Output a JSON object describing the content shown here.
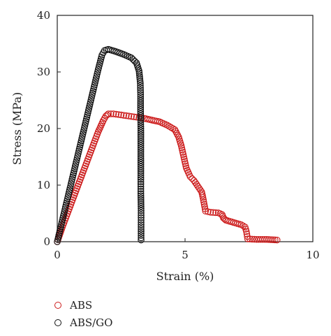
{
  "chart_data": {
    "type": "scatter",
    "title": "",
    "xlabel": "Strain (%)",
    "ylabel": "Stress (MPa)",
    "xlim": [
      0,
      10
    ],
    "ylim": [
      0,
      40
    ],
    "xticks": [
      "0",
      "5",
      "10"
    ],
    "yticks": [
      "0",
      "10",
      "20",
      "30",
      "40"
    ],
    "grid": false,
    "legend_position": "bottom-left",
    "series": [
      {
        "name": "ABS",
        "color": "#cc1a1a",
        "marker": "open-circle",
        "points": [
          [
            0.0,
            0.0
          ],
          [
            0.2,
            2.6
          ],
          [
            0.4,
            5.0
          ],
          [
            0.6,
            7.4
          ],
          [
            0.8,
            9.8
          ],
          [
            1.0,
            12.2
          ],
          [
            1.2,
            14.6
          ],
          [
            1.4,
            17.0
          ],
          [
            1.6,
            19.4
          ],
          [
            1.8,
            21.4
          ],
          [
            1.9,
            22.2
          ],
          [
            2.0,
            22.6
          ],
          [
            2.2,
            22.6
          ],
          [
            2.5,
            22.4
          ],
          [
            2.8,
            22.2
          ],
          [
            3.1,
            22.0
          ],
          [
            3.4,
            21.8
          ],
          [
            3.7,
            21.5
          ],
          [
            4.0,
            21.2
          ],
          [
            4.3,
            20.6
          ],
          [
            4.6,
            19.8
          ],
          [
            4.75,
            18.5
          ],
          [
            4.85,
            17.0
          ],
          [
            4.95,
            15.0
          ],
          [
            5.05,
            13.0
          ],
          [
            5.2,
            11.5
          ],
          [
            5.35,
            10.8
          ],
          [
            5.5,
            9.8
          ],
          [
            5.65,
            8.8
          ],
          [
            5.7,
            7.8
          ],
          [
            5.75,
            6.6
          ],
          [
            5.8,
            5.4
          ],
          [
            6.0,
            5.2
          ],
          [
            6.3,
            5.1
          ],
          [
            6.45,
            4.8
          ],
          [
            6.5,
            4.2
          ],
          [
            6.6,
            3.8
          ],
          [
            6.9,
            3.4
          ],
          [
            7.2,
            3.0
          ],
          [
            7.35,
            2.6
          ],
          [
            7.4,
            1.8
          ],
          [
            7.45,
            0.5
          ],
          [
            7.8,
            0.4
          ],
          [
            8.2,
            0.4
          ],
          [
            8.6,
            0.3
          ]
        ]
      },
      {
        "name": "ABS/GO",
        "color": "#111111",
        "marker": "open-circle",
        "points": [
          [
            0.0,
            0.0
          ],
          [
            0.2,
            3.8
          ],
          [
            0.4,
            7.6
          ],
          [
            0.6,
            11.4
          ],
          [
            0.8,
            15.2
          ],
          [
            1.0,
            19.0
          ],
          [
            1.2,
            22.8
          ],
          [
            1.4,
            26.6
          ],
          [
            1.6,
            30.4
          ],
          [
            1.75,
            33.0
          ],
          [
            1.85,
            33.8
          ],
          [
            2.0,
            34.0
          ],
          [
            2.3,
            33.6
          ],
          [
            2.6,
            33.1
          ],
          [
            2.9,
            32.5
          ],
          [
            3.1,
            31.6
          ],
          [
            3.2,
            30.2
          ],
          [
            3.25,
            28.0
          ],
          [
            3.26,
            26.0
          ],
          [
            3.26,
            23.0
          ],
          [
            3.27,
            20.0
          ],
          [
            3.27,
            17.0
          ],
          [
            3.27,
            14.0
          ],
          [
            3.27,
            11.0
          ],
          [
            3.27,
            8.5
          ],
          [
            3.28,
            5.5
          ],
          [
            3.28,
            3.0
          ],
          [
            3.28,
            0.3
          ]
        ]
      }
    ]
  }
}
